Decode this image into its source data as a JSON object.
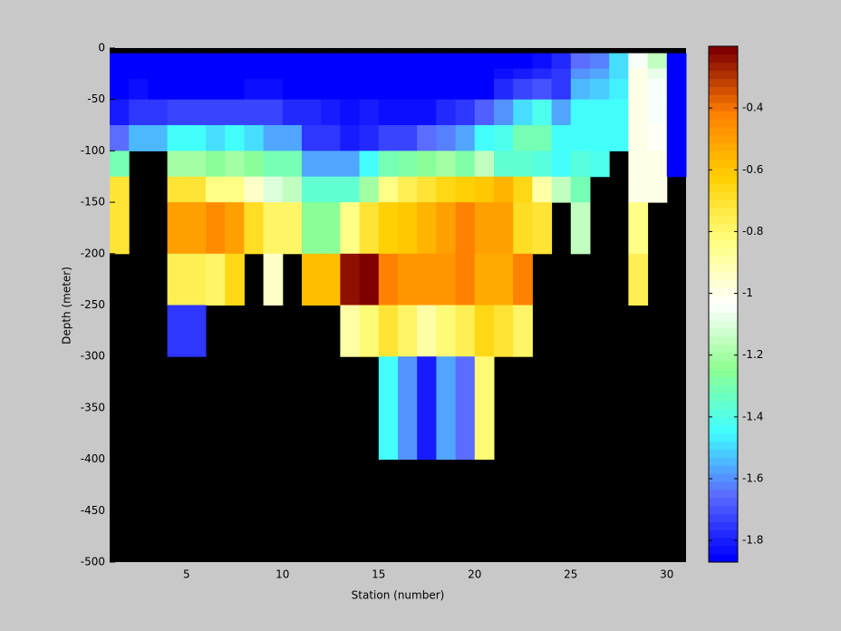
{
  "chart_data": {
    "type": "heatmap",
    "xlabel": "Station (number)",
    "ylabel": "Depth (meter)",
    "xlim": [
      1,
      31
    ],
    "xticks": [
      5,
      10,
      15,
      20,
      25,
      30
    ],
    "ylim": [
      -500,
      0
    ],
    "yticks": [
      -500,
      -450,
      -400,
      -350,
      -300,
      -250,
      -200,
      -150,
      -100,
      -50,
      0
    ],
    "x_edges": [
      1,
      2,
      3,
      4,
      5,
      6,
      7,
      8,
      9,
      10,
      11,
      12,
      13,
      14,
      15,
      16,
      17,
      18,
      19,
      20,
      21,
      22,
      23,
      24,
      25,
      26,
      27,
      28,
      29,
      30,
      31
    ],
    "y_edges": [
      -5,
      -20,
      -30,
      -50,
      -75,
      -100,
      -125,
      -150,
      -200,
      -250,
      -300,
      -400
    ],
    "values": [
      [
        -1.85,
        -1.85,
        -1.85,
        -1.85,
        -1.85,
        -1.85,
        -1.85,
        -1.85,
        -1.85,
        -1.85,
        -1.85,
        -1.85,
        -1.85,
        -1.85,
        -1.85,
        -1.85,
        -1.85,
        -1.85,
        -1.85,
        -1.85,
        -1.85,
        -1.85,
        -1.82,
        -1.78,
        -1.65,
        -1.62,
        -1.48,
        -1.05,
        -1.15,
        -1.85
      ],
      [
        -1.85,
        -1.85,
        -1.85,
        -1.85,
        -1.85,
        -1.85,
        -1.85,
        -1.85,
        -1.85,
        -1.85,
        -1.85,
        -1.85,
        -1.85,
        -1.85,
        -1.85,
        -1.85,
        -1.85,
        -1.85,
        -1.85,
        -1.85,
        -1.82,
        -1.8,
        -1.78,
        -1.75,
        -1.6,
        -1.58,
        -1.5,
        -1.0,
        -1.08,
        -1.85
      ],
      [
        -1.85,
        -1.82,
        -1.85,
        -1.85,
        -1.85,
        -1.85,
        -1.85,
        -1.83,
        -1.83,
        -1.85,
        -1.85,
        -1.85,
        -1.85,
        -1.85,
        -1.85,
        -1.85,
        -1.85,
        -1.85,
        -1.85,
        -1.85,
        -1.78,
        -1.72,
        -1.7,
        -1.75,
        -1.55,
        -1.52,
        -1.47,
        -1.0,
        -1.05,
        -1.85
      ],
      [
        -1.8,
        -1.76,
        -1.76,
        -1.72,
        -1.72,
        -1.72,
        -1.72,
        -1.72,
        -1.72,
        -1.77,
        -1.77,
        -1.8,
        -1.82,
        -1.8,
        -1.82,
        -1.82,
        -1.82,
        -1.78,
        -1.76,
        -1.68,
        -1.6,
        -1.48,
        -1.42,
        -1.57,
        -1.43,
        -1.43,
        -1.43,
        -1.0,
        -1.04,
        -1.85
      ],
      [
        -1.66,
        -1.55,
        -1.55,
        -1.45,
        -1.45,
        -1.48,
        -1.45,
        -1.48,
        -1.56,
        -1.56,
        -1.76,
        -1.76,
        -1.8,
        -1.78,
        -1.72,
        -1.72,
        -1.66,
        -1.63,
        -1.58,
        -1.45,
        -1.42,
        -1.3,
        -1.3,
        -1.45,
        -1.45,
        -1.45,
        -1.45,
        -1.0,
        -1.02,
        -1.85
      ],
      [
        -1.3,
        null,
        null,
        -1.2,
        -1.2,
        -1.25,
        -1.2,
        -1.25,
        -1.3,
        -1.3,
        -1.57,
        -1.57,
        -1.57,
        -1.45,
        -1.3,
        -1.27,
        -1.25,
        -1.2,
        -1.27,
        -1.15,
        -1.35,
        -1.35,
        -1.4,
        -1.45,
        -1.4,
        -1.42,
        null,
        -1.0,
        -1.0,
        -1.85
      ],
      [
        -0.72,
        null,
        null,
        -0.72,
        -0.72,
        -0.85,
        -0.85,
        -0.95,
        -1.1,
        -1.15,
        -1.35,
        -1.35,
        -1.35,
        -1.2,
        -0.85,
        -0.75,
        -0.72,
        -0.65,
        -0.62,
        -0.6,
        -0.55,
        -0.65,
        -0.9,
        -1.15,
        -1.3,
        null,
        null,
        -1.0,
        -1.0,
        null
      ],
      [
        -0.7,
        null,
        null,
        -0.5,
        -0.5,
        -0.45,
        -0.5,
        -0.68,
        -0.8,
        -0.8,
        -1.25,
        -1.25,
        -0.85,
        -0.7,
        -0.62,
        -0.6,
        -0.55,
        -0.5,
        -0.42,
        -0.5,
        -0.5,
        -0.68,
        -0.72,
        null,
        -1.15,
        null,
        null,
        -0.85,
        null,
        null
      ],
      [
        null,
        null,
        null,
        -0.75,
        -0.75,
        -0.8,
        -0.65,
        null,
        -0.95,
        null,
        -0.58,
        -0.58,
        -0.25,
        -0.22,
        -0.42,
        -0.48,
        -0.48,
        -0.48,
        -0.42,
        -0.52,
        -0.52,
        -0.42,
        null,
        null,
        null,
        null,
        null,
        -0.75,
        null,
        null
      ],
      [
        null,
        null,
        null,
        -1.75,
        -1.75,
        null,
        null,
        null,
        null,
        null,
        null,
        null,
        -0.88,
        -0.82,
        -0.72,
        -0.8,
        -0.88,
        -0.82,
        -0.75,
        -0.65,
        -0.72,
        -0.8,
        null,
        null,
        null,
        null,
        null,
        null,
        null,
        null
      ],
      [
        null,
        null,
        null,
        null,
        null,
        null,
        null,
        null,
        null,
        null,
        null,
        null,
        null,
        null,
        -1.45,
        -1.6,
        -1.8,
        -1.58,
        -1.65,
        -0.82,
        null,
        null,
        null,
        null,
        null,
        null,
        null,
        null,
        null,
        null
      ]
    ],
    "clim": [
      -1.87,
      -0.2
    ],
    "cticks": [
      -1.8,
      -1.6,
      -1.4,
      -1.2,
      -1,
      -0.8,
      -0.6,
      -0.4
    ],
    "colormap": [
      "#0000ff",
      "#5a6bff",
      "#40ffff",
      "#90ff90",
      "#ffffff",
      "#ffff80",
      "#ffd000",
      "#ff8000",
      "#800000"
    ],
    "colormap_levels": 64,
    "background": "#000000"
  }
}
